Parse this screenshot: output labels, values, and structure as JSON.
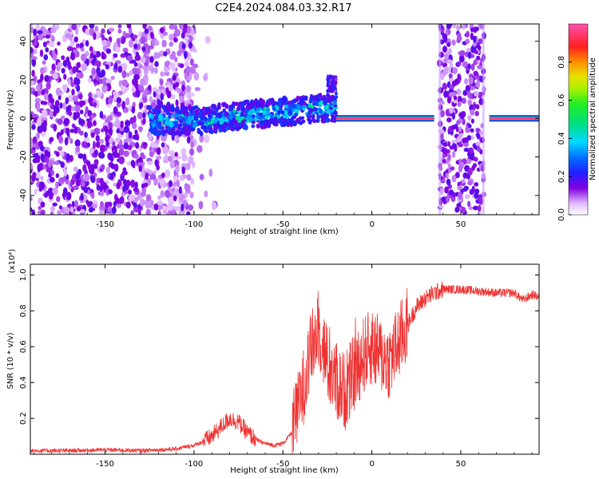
{
  "title": "C2E4.2024.084.03.32.R17",
  "chart_data": [
    {
      "type": "heatmap",
      "xlabel": "Height of straight line (km)",
      "ylabel": "Frequency (Hz)",
      "xlim": [
        -192,
        94
      ],
      "ylim": [
        -50,
        49
      ],
      "xticks": [
        -150,
        -100,
        -50,
        0,
        50
      ],
      "yticks": [
        -40,
        -20,
        0,
        20,
        40
      ],
      "colorbar": {
        "label": "Normalized spectral amplitude",
        "range": [
          0.0,
          1.0
        ],
        "ticks": [
          "0.0",
          "0.2",
          "0.4",
          "0.6",
          "0.8"
        ],
        "colors": [
          "#ffffff",
          "#d8b0ff",
          "#7a00e0",
          "#1d1dff",
          "#00d8ff",
          "#00e070",
          "#22ee22",
          "#e4e400",
          "#ff8800",
          "#ff2020",
          "#ff4da6"
        ]
      },
      "features": [
        {
          "x_range": [
            -192,
            -100
          ],
          "note": "broadband scattered amplitude 0.05-0.3"
        },
        {
          "x_range": [
            -125,
            -20
          ],
          "note": "band near 0 Hz rising to about 5 Hz, amplitude 0.3-0.55"
        },
        {
          "x_range": [
            -20,
            35
          ],
          "note": "narrow line at 0 Hz, amplitude about 0.95"
        },
        {
          "x_range": [
            38,
            63
          ],
          "note": "broadband burst amplitude 0.1-0.3"
        },
        {
          "x_range": [
            66,
            94
          ],
          "note": "narrow line at 0 Hz, amplitude about 0.95"
        }
      ]
    },
    {
      "type": "line",
      "xlabel": "Height of straight line (km)",
      "ylabel": "SNR (10 * v/v)",
      "yexponent": "(x10⁴)",
      "xlim": [
        -192,
        94
      ],
      "ylim": [
        0,
        1.06
      ],
      "xticks": [
        -150,
        -100,
        -50,
        0,
        50
      ],
      "yticks": [
        0.2,
        0.4,
        0.6,
        0.8,
        1.0
      ],
      "ytick_labels": [
        "0.2",
        "0.4",
        "0.6",
        "0.8",
        "1.0"
      ],
      "series": [
        {
          "color": "#ee3333",
          "x": [
            -192,
            -170,
            -150,
            -130,
            -120,
            -110,
            -100,
            -95,
            -90,
            -85,
            -80,
            -75,
            -70,
            -65,
            -60,
            -55,
            -50,
            -45,
            -40,
            -35,
            -30,
            -25,
            -20,
            -15,
            -10,
            -5,
            0,
            5,
            10,
            15,
            20,
            25,
            30,
            35,
            40,
            50,
            60,
            70,
            80,
            85,
            90,
            94
          ],
          "y": [
            0.02,
            0.02,
            0.025,
            0.02,
            0.025,
            0.03,
            0.05,
            0.07,
            0.1,
            0.15,
            0.2,
            0.18,
            0.12,
            0.08,
            0.06,
            0.05,
            0.06,
            0.12,
            0.3,
            0.55,
            0.7,
            0.5,
            0.4,
            0.35,
            0.45,
            0.55,
            0.6,
            0.55,
            0.52,
            0.62,
            0.72,
            0.82,
            0.87,
            0.9,
            0.92,
            0.92,
            0.91,
            0.9,
            0.9,
            0.86,
            0.89,
            0.88
          ]
        }
      ]
    }
  ]
}
